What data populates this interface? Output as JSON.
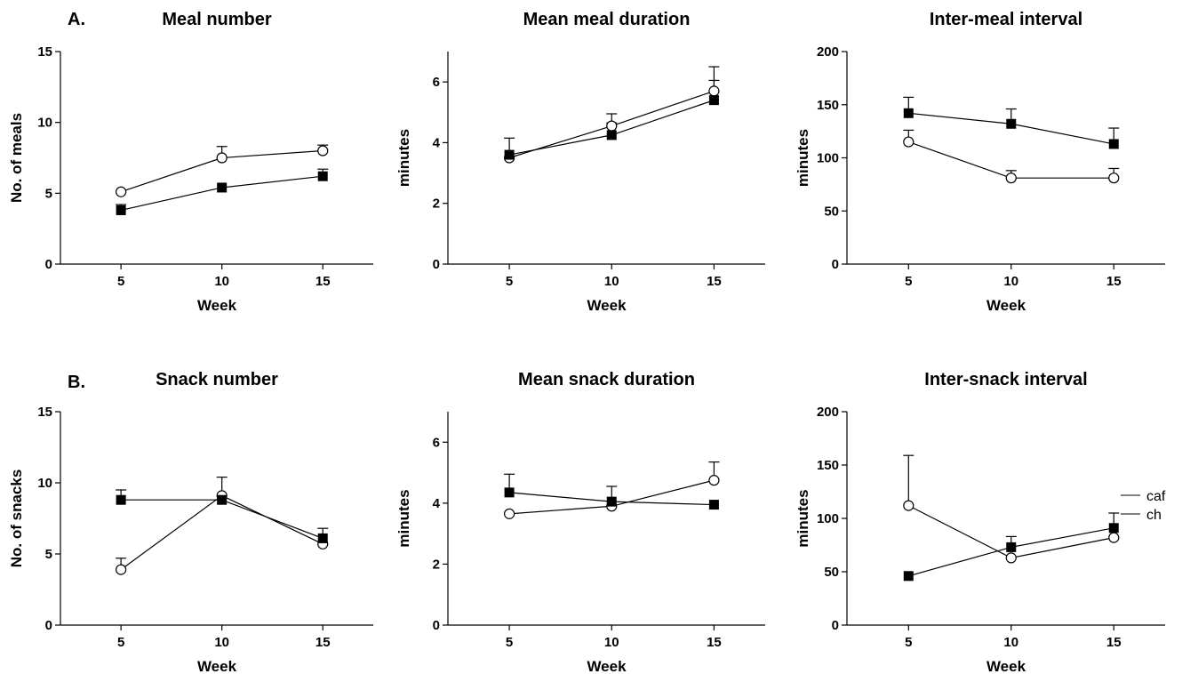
{
  "figure": {
    "panel_letters": [
      "A.",
      "B."
    ],
    "legend": [
      {
        "label": "caf",
        "marker": "open-circle"
      },
      {
        "label": "ch",
        "marker": "filled-square"
      }
    ]
  },
  "chart_data": [
    {
      "type": "line",
      "title": "Meal number",
      "xlabel": "Week",
      "ylabel": "No. of meals",
      "x": [
        5,
        10,
        15
      ],
      "xlim": [
        2,
        17.5
      ],
      "ylim": [
        0,
        15
      ],
      "yticks": [
        0,
        5,
        10,
        15
      ],
      "series": [
        {
          "name": "caf",
          "marker": "open-circle",
          "values": [
            5.1,
            7.5,
            8.0
          ],
          "errors": [
            0,
            0.8,
            0.4
          ]
        },
        {
          "name": "ch",
          "marker": "filled-square",
          "values": [
            3.8,
            5.4,
            6.2
          ],
          "errors": [
            0.4,
            0,
            0.5
          ]
        }
      ]
    },
    {
      "type": "line",
      "title": "Mean meal duration",
      "xlabel": "Week",
      "ylabel": "minutes",
      "x": [
        5,
        10,
        15
      ],
      "xlim": [
        2,
        17.5
      ],
      "ylim": [
        0,
        7
      ],
      "yticks": [
        0,
        2,
        4,
        6
      ],
      "series": [
        {
          "name": "caf",
          "marker": "open-circle",
          "values": [
            3.5,
            4.55,
            5.7
          ],
          "errors": [
            0,
            0.4,
            0.8
          ]
        },
        {
          "name": "ch",
          "marker": "filled-square",
          "values": [
            3.6,
            4.25,
            5.4
          ],
          "errors": [
            0.55,
            0.4,
            0.65
          ]
        }
      ]
    },
    {
      "type": "line",
      "title": "Inter-meal interval",
      "xlabel": "Week",
      "ylabel": "minutes",
      "x": [
        5,
        10,
        15
      ],
      "xlim": [
        2,
        17.5
      ],
      "ylim": [
        0,
        200
      ],
      "yticks": [
        0,
        50,
        100,
        150,
        200
      ],
      "series": [
        {
          "name": "caf",
          "marker": "open-circle",
          "values": [
            115,
            81,
            81
          ],
          "errors": [
            11,
            7,
            9
          ]
        },
        {
          "name": "ch",
          "marker": "filled-square",
          "values": [
            142,
            132,
            113
          ],
          "errors": [
            15,
            14,
            15
          ]
        }
      ]
    },
    {
      "type": "line",
      "title": "Snack number",
      "xlabel": "Week",
      "ylabel": "No. of snacks",
      "x": [
        5,
        10,
        15
      ],
      "xlim": [
        2,
        17.5
      ],
      "ylim": [
        0,
        15
      ],
      "yticks": [
        0,
        5,
        10,
        15
      ],
      "series": [
        {
          "name": "caf",
          "marker": "open-circle",
          "values": [
            3.9,
            9.1,
            5.7
          ],
          "errors": [
            0.8,
            1.3,
            0
          ]
        },
        {
          "name": "ch",
          "marker": "filled-square",
          "values": [
            8.8,
            8.8,
            6.1
          ],
          "errors": [
            0.7,
            0,
            0.7
          ]
        }
      ]
    },
    {
      "type": "line",
      "title": "Mean snack duration",
      "xlabel": "Week",
      "ylabel": "minutes",
      "x": [
        5,
        10,
        15
      ],
      "xlim": [
        2,
        17.5
      ],
      "ylim": [
        0,
        7
      ],
      "yticks": [
        0,
        2,
        4,
        6
      ],
      "series": [
        {
          "name": "caf",
          "marker": "open-circle",
          "values": [
            3.65,
            3.9,
            4.75
          ],
          "errors": [
            0,
            0,
            0.6
          ]
        },
        {
          "name": "ch",
          "marker": "filled-square",
          "values": [
            4.35,
            4.05,
            3.95
          ],
          "errors": [
            0.6,
            0.5,
            0
          ]
        }
      ]
    },
    {
      "type": "line",
      "title": "Inter-snack interval",
      "xlabel": "Week",
      "ylabel": "minutes",
      "x": [
        5,
        10,
        15
      ],
      "xlim": [
        2,
        17.5
      ],
      "ylim": [
        0,
        200
      ],
      "yticks": [
        0,
        50,
        100,
        150,
        200
      ],
      "series": [
        {
          "name": "caf",
          "marker": "open-circle",
          "values": [
            112,
            63,
            82
          ],
          "errors": [
            47,
            0,
            0
          ]
        },
        {
          "name": "ch",
          "marker": "filled-square",
          "values": [
            46,
            73,
            91
          ],
          "errors": [
            0,
            10,
            14
          ]
        }
      ]
    }
  ]
}
